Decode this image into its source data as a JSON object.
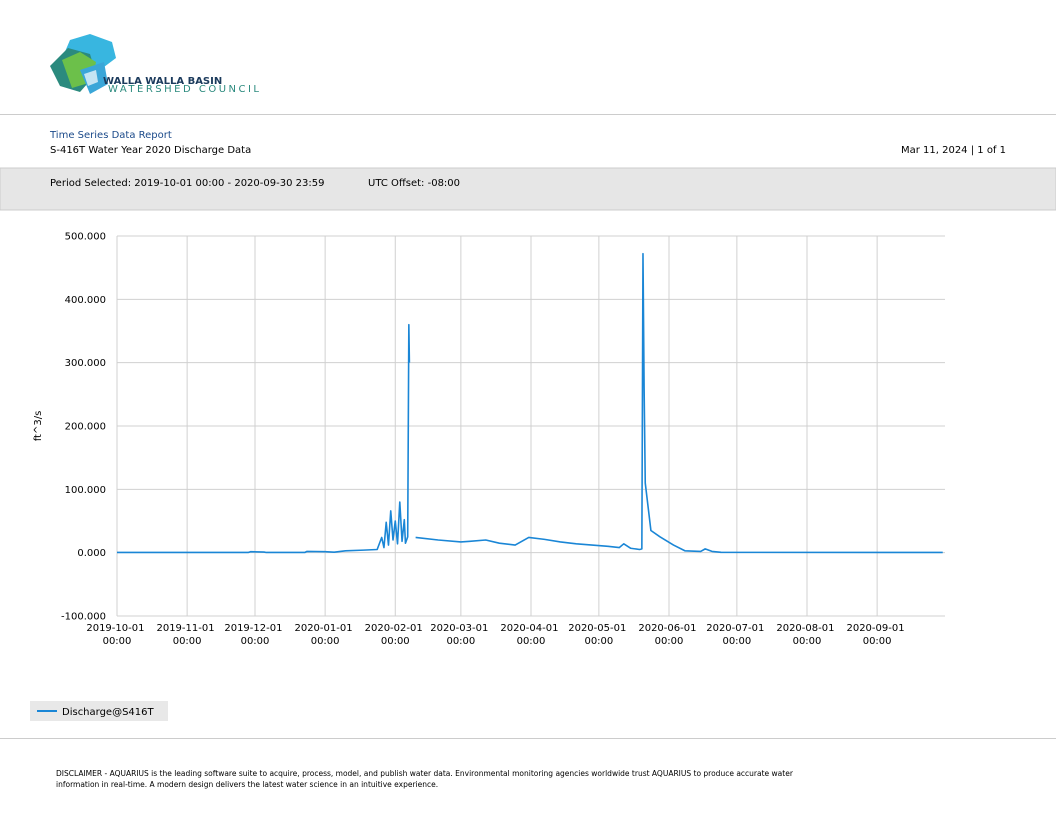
{
  "header": {
    "logo_title": "WALLA WALLA BASIN",
    "logo_subtitle": "WATERSHED COUNCIL",
    "report_title": "Time Series Data Report",
    "report_subtitle": "S-416T Water Year 2020 Discharge Data",
    "date_page": "Mar 11, 2024 | 1 of 1"
  },
  "period": {
    "selected": "Period Selected: 2019-10-01 00:00 - 2020-09-30 23:59",
    "utc_offset": "UTC Offset: -08:00"
  },
  "footer": {
    "disclaimer": "DISCLAIMER - AQUARIUS is the leading software suite to acquire, process, model, and publish water data. Environmental monitoring agencies worldwide trust AQUARIUS to produce accurate water information in real-time. A modern design delivers the latest water science in an intuitive experience."
  },
  "chart_data": {
    "type": "line",
    "y_label": "ft^3/s",
    "grid": true,
    "legend": "bottom-left",
    "x": [
      "2019-10-01 00:00",
      "2019-11-28 00:00",
      "2019-11-29 00:00",
      "2019-12-05 00:00",
      "2019-12-06 00:00",
      "2019-12-23 00:00",
      "2019-12-24 00:00",
      "2020-01-01 00:00",
      "2020-01-05 00:00",
      "2020-01-10 00:00",
      "2020-01-18 00:00",
      "2020-01-24 00:00",
      "2020-01-26 00:00",
      "2020-01-27 00:00",
      "2020-01-28 00:00",
      "2020-01-29 00:00",
      "2020-01-30 00:00",
      "2020-01-31 00:00",
      "2020-02-01 00:00",
      "2020-02-02 00:00",
      "2020-02-03 00:00",
      "2020-02-04 00:00",
      "2020-02-05 00:00",
      "2020-02-05 12:00",
      "2020-02-06 12:00",
      "2020-02-07 00:00",
      "2020-02-07 06:00",
      "2020-02-08 00:00",
      "2020-02-10 00:00",
      "2020-02-20 00:00",
      "2020-03-01 00:00",
      "2020-03-05 00:00",
      "2020-03-12 00:00",
      "2020-03-18 00:00",
      "2020-03-25 00:00",
      "2020-03-31 00:00",
      "2020-04-07 00:00",
      "2020-04-14 00:00",
      "2020-04-21 00:00",
      "2020-04-28 00:00",
      "2020-05-05 00:00",
      "2020-05-10 00:00",
      "2020-05-12 00:00",
      "2020-05-15 00:00",
      "2020-05-19 00:00",
      "2020-05-20 00:00",
      "2020-05-20 12:00",
      "2020-05-21 00:00",
      "2020-05-21 12:00",
      "2020-05-24 00:00",
      "2020-05-28 00:00",
      "2020-06-03 00:00",
      "2020-06-08 00:00",
      "2020-06-15 00:00",
      "2020-06-17 00:00",
      "2020-06-20 00:00",
      "2020-06-24 00:00",
      "2020-09-30 00:00"
    ],
    "series": [
      {
        "name": "Discharge@S416T",
        "color": "#1a86d6",
        "values": [
          0.3,
          0.3,
          1.5,
          1.0,
          0.3,
          0.3,
          2.0,
          1.5,
          0.8,
          3,
          4,
          5,
          24,
          8,
          48,
          12,
          66,
          20,
          50,
          14,
          80,
          18,
          52,
          15,
          25,
          360,
          300,
          null,
          24,
          20,
          17,
          18,
          20,
          15,
          12,
          24,
          21,
          17,
          14,
          12,
          10,
          8,
          14,
          7,
          5,
          6,
          472,
          260,
          110,
          35,
          25,
          12,
          3,
          2,
          6,
          2,
          0.5,
          0.3
        ]
      }
    ],
    "xlim": [
      "2019-10-01 00:00",
      "2020-10-01 00:00"
    ],
    "xticks": [
      "2019-10-01 00:00",
      "2019-11-01 00:00",
      "2019-12-01 00:00",
      "2020-01-01 00:00",
      "2020-02-01 00:00",
      "2020-03-01 00:00",
      "2020-04-01 00:00",
      "2020-05-01 00:00",
      "2020-06-01 00:00",
      "2020-07-01 00:00",
      "2020-08-01 00:00",
      "2020-09-01 00:00"
    ],
    "ylim": [
      -100,
      500
    ],
    "yticks": [
      {
        "value": -100,
        "label": "-100.000"
      },
      {
        "value": 0,
        "label": "0.000"
      },
      {
        "value": 100,
        "label": "100.000"
      },
      {
        "value": 200,
        "label": "200.000"
      },
      {
        "value": 300,
        "label": "300.000"
      },
      {
        "value": 400,
        "label": "400.000"
      },
      {
        "value": 500,
        "label": "500.000"
      }
    ]
  }
}
